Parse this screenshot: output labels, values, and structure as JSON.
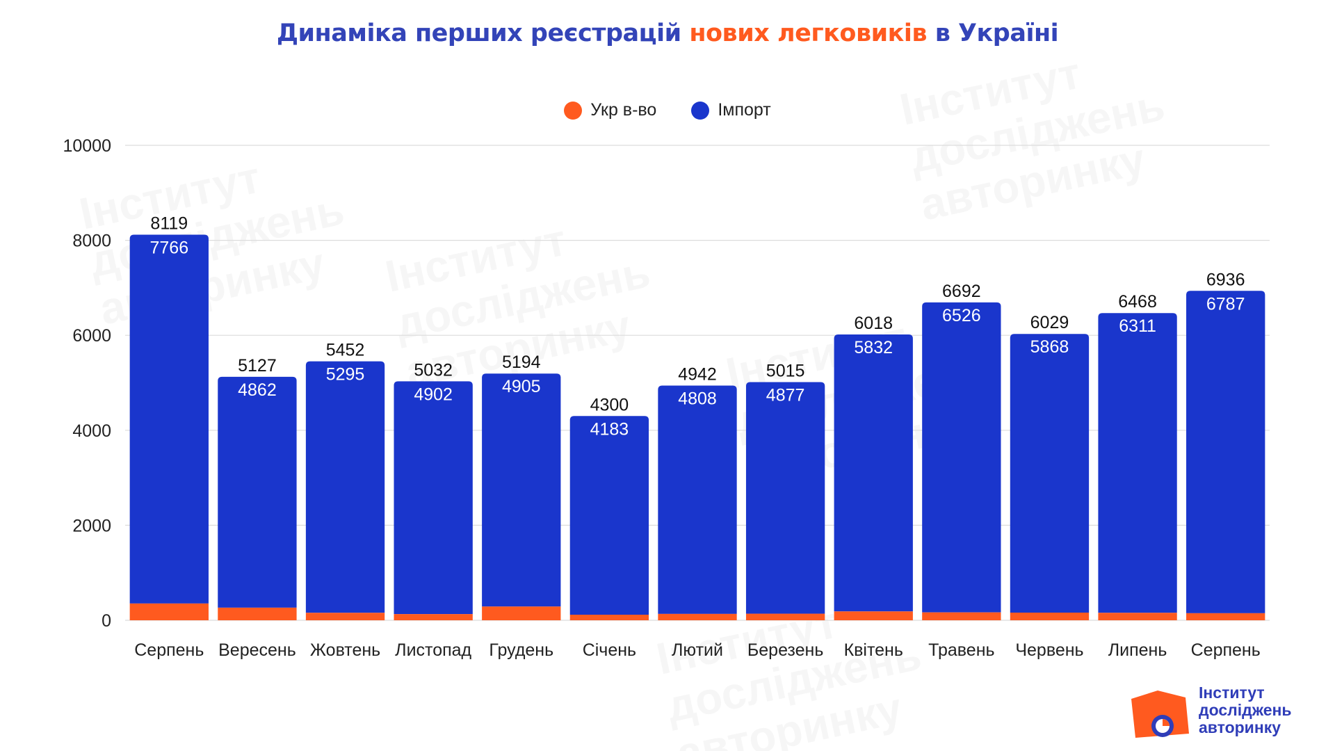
{
  "title": {
    "part1": "Динаміка перших реєстрацій ",
    "part2": "нових легковиків",
    "part3": " в Україні"
  },
  "colors": {
    "title_blue": "#3344b8",
    "title_orange": "#ff5a1f",
    "ukr": "#ff5a1f",
    "import": "#1a36cc",
    "grid": "#dcdcdc",
    "logo_orange": "#ff5a1f",
    "logo_blue": "#2f3db8"
  },
  "legend": [
    {
      "label": "Укр в-во",
      "color": "#ff5a1f"
    },
    {
      "label": "Імпорт",
      "color": "#1a36cc"
    }
  ],
  "chart_data": {
    "type": "bar",
    "stacked": true,
    "categories": [
      "Серпень",
      "Вересень",
      "Жовтень",
      "Листопад",
      "Грудень",
      "Січень",
      "Лютий",
      "Березень",
      "Квітень",
      "Травень",
      "Червень",
      "Липень",
      "Серпень"
    ],
    "series": [
      {
        "name": "Укр в-во",
        "values": [
          353,
          265,
          157,
          130,
          289,
          117,
          134,
          138,
          186,
          166,
          161,
          157,
          149
        ]
      },
      {
        "name": "Імпорт",
        "values": [
          7766,
          4862,
          5295,
          4902,
          4905,
          4183,
          4808,
          4877,
          5832,
          6526,
          5868,
          6311,
          6787
        ]
      }
    ],
    "totals": [
      8119,
      5127,
      5452,
      5032,
      5194,
      4300,
      4942,
      5015,
      6018,
      6692,
      6029,
      6468,
      6936
    ],
    "ylim": [
      0,
      10000
    ],
    "yticks": [
      0,
      2000,
      4000,
      6000,
      8000,
      10000
    ],
    "grid": true,
    "legend_position": "top-center"
  },
  "logo": {
    "line1": "Інститут",
    "line2": "досліджень",
    "line3": "авторинку"
  }
}
